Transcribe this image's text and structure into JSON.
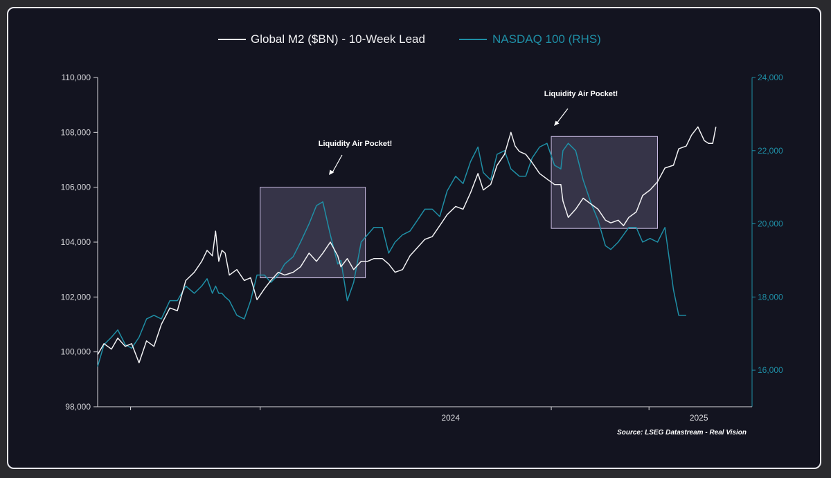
{
  "colors": {
    "background": "#131420",
    "m2_line": "#f2f2f4",
    "nasdaq_line": "#1f8fa6",
    "left_axis": "#d9d9dd",
    "right_axis": "#1f8fa6",
    "box_fill": "#b8a7d6",
    "box_stroke": "#cdbfe6"
  },
  "legend": {
    "m2": "Global M2 ($BN) - 10-Week Lead",
    "nasdaq": "NASDAQ 100 (RHS)"
  },
  "annotations": [
    {
      "text": "Liquidity Air Pocket!"
    },
    {
      "text": "Liquidity Air Pocket!"
    }
  ],
  "source": "Source: LSEG Datastream - Real Vision",
  "chart_data": {
    "type": "line",
    "title": "",
    "x_tick_labels": [
      "2024",
      "2025"
    ],
    "x_ticks": [
      "2023-09-01",
      "2024-01-01",
      "2024-10-01",
      "2025-01-01"
    ],
    "x_range": [
      "2023-08-01",
      "2025-04-08"
    ],
    "y_left": {
      "range": [
        98000,
        110000
      ],
      "ticks": [
        98000,
        100000,
        102000,
        104000,
        106000,
        108000,
        110000
      ],
      "tick_labels": [
        "98,000",
        "100,000",
        "102,000",
        "104,000",
        "106,000",
        "108,000",
        "110,000"
      ]
    },
    "y_right": {
      "range": [
        15000,
        24000
      ],
      "ticks": [
        16000,
        18000,
        20000,
        22000,
        24000
      ],
      "tick_labels": [
        "16,000",
        "18,000",
        "20,000",
        "22,000",
        "24,000"
      ]
    },
    "series": [
      {
        "name": "Global M2 ($BN) - 10-Week Lead",
        "axis": "left",
        "points": [
          [
            "2023-08-01",
            99900
          ],
          [
            "2023-08-07",
            100300
          ],
          [
            "2023-08-14",
            100100
          ],
          [
            "2023-08-20",
            100500
          ],
          [
            "2023-08-27",
            100200
          ],
          [
            "2023-09-02",
            100300
          ],
          [
            "2023-09-09",
            99600
          ],
          [
            "2023-09-16",
            100400
          ],
          [
            "2023-09-23",
            100200
          ],
          [
            "2023-09-30",
            101000
          ],
          [
            "2023-10-08",
            101600
          ],
          [
            "2023-10-15",
            101500
          ],
          [
            "2023-10-23",
            102600
          ],
          [
            "2023-10-31",
            102900
          ],
          [
            "2023-11-07",
            103300
          ],
          [
            "2023-11-12",
            103700
          ],
          [
            "2023-11-17",
            103500
          ],
          [
            "2023-11-20",
            104400
          ],
          [
            "2023-11-23",
            103300
          ],
          [
            "2023-11-26",
            103700
          ],
          [
            "2023-11-29",
            103600
          ],
          [
            "2023-12-03",
            102800
          ],
          [
            "2023-12-10",
            103000
          ],
          [
            "2023-12-17",
            102600
          ],
          [
            "2023-12-23",
            102700
          ],
          [
            "2023-12-29",
            101900
          ],
          [
            "2024-01-05",
            102300
          ],
          [
            "2024-01-11",
            102600
          ],
          [
            "2024-01-18",
            102900
          ],
          [
            "2024-01-24",
            102800
          ],
          [
            "2024-02-01",
            102900
          ],
          [
            "2024-02-08",
            103100
          ],
          [
            "2024-02-16",
            103600
          ],
          [
            "2024-02-23",
            103300
          ],
          [
            "2024-02-29",
            103600
          ],
          [
            "2024-03-07",
            104000
          ],
          [
            "2024-03-14",
            103500
          ],
          [
            "2024-03-17",
            103100
          ],
          [
            "2024-03-23",
            103400
          ],
          [
            "2024-03-29",
            103000
          ],
          [
            "2024-04-05",
            103300
          ],
          [
            "2024-04-11",
            103300
          ],
          [
            "2024-04-17",
            103400
          ],
          [
            "2024-04-25",
            103400
          ],
          [
            "2024-05-01",
            103200
          ],
          [
            "2024-05-07",
            102900
          ],
          [
            "2024-05-14",
            103000
          ],
          [
            "2024-05-21",
            103500
          ],
          [
            "2024-05-28",
            103800
          ],
          [
            "2024-06-04",
            104100
          ],
          [
            "2024-06-11",
            104200
          ],
          [
            "2024-06-18",
            104600
          ],
          [
            "2024-06-25",
            105000
          ],
          [
            "2024-07-03",
            105300
          ],
          [
            "2024-07-10",
            105200
          ],
          [
            "2024-07-17",
            105800
          ],
          [
            "2024-07-24",
            106500
          ],
          [
            "2024-07-29",
            105900
          ],
          [
            "2024-08-05",
            106100
          ],
          [
            "2024-08-11",
            106800
          ],
          [
            "2024-08-18",
            107200
          ],
          [
            "2024-08-24",
            108000
          ],
          [
            "2024-08-28",
            107500
          ],
          [
            "2024-09-01",
            107300
          ],
          [
            "2024-09-07",
            107200
          ],
          [
            "2024-09-13",
            106900
          ],
          [
            "2024-09-20",
            106500
          ],
          [
            "2024-09-27",
            106300
          ],
          [
            "2024-10-04",
            106100
          ],
          [
            "2024-10-10",
            106100
          ],
          [
            "2024-10-12",
            105500
          ],
          [
            "2024-10-17",
            104900
          ],
          [
            "2024-10-24",
            105200
          ],
          [
            "2024-10-31",
            105600
          ],
          [
            "2024-11-07",
            105400
          ],
          [
            "2024-11-14",
            105200
          ],
          [
            "2024-11-21",
            104800
          ],
          [
            "2024-11-26",
            104700
          ],
          [
            "2024-12-03",
            104800
          ],
          [
            "2024-12-08",
            104600
          ],
          [
            "2024-12-13",
            104900
          ],
          [
            "2024-12-20",
            105100
          ],
          [
            "2024-12-26",
            105700
          ],
          [
            "2025-01-02",
            105900
          ],
          [
            "2025-01-09",
            106200
          ],
          [
            "2025-01-16",
            106700
          ],
          [
            "2025-01-24",
            106800
          ],
          [
            "2025-01-29",
            107400
          ],
          [
            "2025-02-05",
            107500
          ],
          [
            "2025-02-10",
            107900
          ],
          [
            "2025-02-16",
            108200
          ],
          [
            "2025-02-22",
            107700
          ],
          [
            "2025-02-26",
            107600
          ],
          [
            "2025-03-02",
            107600
          ],
          [
            "2025-03-05",
            108200
          ]
        ]
      },
      {
        "name": "NASDAQ 100 (RHS)",
        "axis": "right",
        "points": [
          [
            "2023-08-01",
            16100
          ],
          [
            "2023-08-07",
            16700
          ],
          [
            "2023-08-14",
            16900
          ],
          [
            "2023-08-20",
            17100
          ],
          [
            "2023-08-27",
            16700
          ],
          [
            "2023-09-02",
            16600
          ],
          [
            "2023-09-09",
            16900
          ],
          [
            "2023-09-16",
            17400
          ],
          [
            "2023-09-23",
            17500
          ],
          [
            "2023-09-30",
            17400
          ],
          [
            "2023-10-08",
            17900
          ],
          [
            "2023-10-15",
            17900
          ],
          [
            "2023-10-23",
            18300
          ],
          [
            "2023-10-31",
            18100
          ],
          [
            "2023-11-07",
            18300
          ],
          [
            "2023-11-12",
            18500
          ],
          [
            "2023-11-17",
            18100
          ],
          [
            "2023-11-20",
            18300
          ],
          [
            "2023-11-23",
            18100
          ],
          [
            "2023-11-26",
            18100
          ],
          [
            "2023-11-29",
            18000
          ],
          [
            "2023-12-03",
            17900
          ],
          [
            "2023-12-10",
            17500
          ],
          [
            "2023-12-17",
            17400
          ],
          [
            "2023-12-23",
            17900
          ],
          [
            "2023-12-29",
            18600
          ],
          [
            "2024-01-05",
            18600
          ],
          [
            "2024-01-11",
            18400
          ],
          [
            "2024-01-18",
            18600
          ],
          [
            "2024-01-24",
            18900
          ],
          [
            "2024-02-01",
            19100
          ],
          [
            "2024-02-08",
            19500
          ],
          [
            "2024-02-16",
            20000
          ],
          [
            "2024-02-23",
            20500
          ],
          [
            "2024-02-29",
            20600
          ],
          [
            "2024-03-07",
            19700
          ],
          [
            "2024-03-14",
            18900
          ],
          [
            "2024-03-17",
            19000
          ],
          [
            "2024-03-23",
            17900
          ],
          [
            "2024-03-29",
            18400
          ],
          [
            "2024-04-05",
            19500
          ],
          [
            "2024-04-11",
            19700
          ],
          [
            "2024-04-17",
            19900
          ],
          [
            "2024-04-25",
            19900
          ],
          [
            "2024-05-01",
            19200
          ],
          [
            "2024-05-07",
            19500
          ],
          [
            "2024-05-14",
            19700
          ],
          [
            "2024-05-21",
            19800
          ],
          [
            "2024-05-28",
            20100
          ],
          [
            "2024-06-04",
            20400
          ],
          [
            "2024-06-11",
            20400
          ],
          [
            "2024-06-18",
            20200
          ],
          [
            "2024-06-25",
            20900
          ],
          [
            "2024-07-03",
            21300
          ],
          [
            "2024-07-10",
            21100
          ],
          [
            "2024-07-17",
            21700
          ],
          [
            "2024-07-24",
            22100
          ],
          [
            "2024-07-29",
            21400
          ],
          [
            "2024-08-05",
            21200
          ],
          [
            "2024-08-11",
            21900
          ],
          [
            "2024-08-18",
            22000
          ],
          [
            "2024-08-24",
            21500
          ],
          [
            "2024-08-28",
            21400
          ],
          [
            "2024-09-01",
            21300
          ],
          [
            "2024-09-07",
            21300
          ],
          [
            "2024-09-13",
            21800
          ],
          [
            "2024-09-20",
            22100
          ],
          [
            "2024-09-27",
            22200
          ],
          [
            "2024-10-04",
            21600
          ],
          [
            "2024-10-10",
            21500
          ],
          [
            "2024-10-12",
            22000
          ],
          [
            "2024-10-17",
            22200
          ],
          [
            "2024-10-24",
            22000
          ],
          [
            "2024-10-31",
            21200
          ],
          [
            "2024-11-07",
            20600
          ],
          [
            "2024-11-14",
            20100
          ],
          [
            "2024-11-21",
            19400
          ],
          [
            "2024-11-26",
            19300
          ],
          [
            "2024-12-03",
            19500
          ],
          [
            "2024-12-08",
            19700
          ],
          [
            "2024-12-13",
            19900
          ],
          [
            "2024-12-20",
            19900
          ],
          [
            "2024-12-26",
            19500
          ],
          [
            "2025-01-02",
            19600
          ],
          [
            "2025-01-09",
            19500
          ],
          [
            "2025-01-16",
            19900
          ],
          [
            "2025-01-24",
            18200
          ],
          [
            "2025-01-29",
            17500
          ],
          [
            "2025-02-05",
            17500
          ]
        ]
      }
    ],
    "highlight_boxes": [
      {
        "x0": "2024-01-01",
        "x1": "2024-04-09",
        "y0": 102700,
        "y1": 106000
      },
      {
        "x0": "2024-10-01",
        "x1": "2025-01-09",
        "y0": 104500,
        "y1": 107850
      }
    ]
  }
}
